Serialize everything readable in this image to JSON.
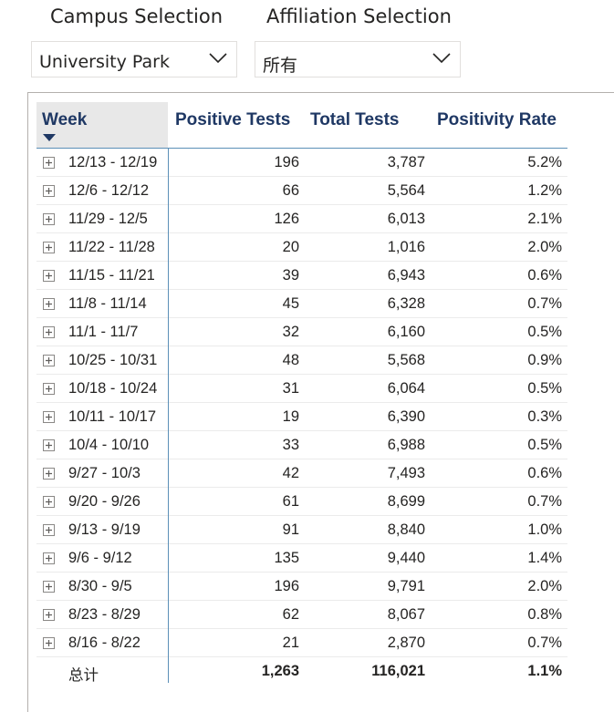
{
  "slicers": {
    "campus": {
      "title": "Campus Selection",
      "value": "University Park"
    },
    "affiliation": {
      "title": "Affiliation Selection",
      "value": "所有"
    }
  },
  "matrix": {
    "columns": [
      "Week",
      "Positive Tests",
      "Total Tests",
      "Positivity Rate"
    ],
    "sort": {
      "column": "Week",
      "direction": "descending"
    },
    "rows": [
      {
        "week": "12/13 - 12/19",
        "positive": "196",
        "total": "3,787",
        "rate": "5.2%"
      },
      {
        "week": "12/6 - 12/12",
        "positive": "66",
        "total": "5,564",
        "rate": "1.2%"
      },
      {
        "week": "11/29 - 12/5",
        "positive": "126",
        "total": "6,013",
        "rate": "2.1%"
      },
      {
        "week": "11/22 - 11/28",
        "positive": "20",
        "total": "1,016",
        "rate": "2.0%"
      },
      {
        "week": "11/15 - 11/21",
        "positive": "39",
        "total": "6,943",
        "rate": "0.6%"
      },
      {
        "week": "11/8 - 11/14",
        "positive": "45",
        "total": "6,328",
        "rate": "0.7%"
      },
      {
        "week": "11/1 - 11/7",
        "positive": "32",
        "total": "6,160",
        "rate": "0.5%"
      },
      {
        "week": "10/25 - 10/31",
        "positive": "48",
        "total": "5,568",
        "rate": "0.9%"
      },
      {
        "week": "10/18 - 10/24",
        "positive": "31",
        "total": "6,064",
        "rate": "0.5%"
      },
      {
        "week": "10/11 - 10/17",
        "positive": "19",
        "total": "6,390",
        "rate": "0.3%"
      },
      {
        "week": "10/4 - 10/10",
        "positive": "33",
        "total": "6,988",
        "rate": "0.5%"
      },
      {
        "week": "9/27 - 10/3",
        "positive": "42",
        "total": "7,493",
        "rate": "0.6%"
      },
      {
        "week": "9/20 - 9/26",
        "positive": "61",
        "total": "8,699",
        "rate": "0.7%"
      },
      {
        "week": "9/13 - 9/19",
        "positive": "91",
        "total": "8,840",
        "rate": "1.0%"
      },
      {
        "week": "9/6 - 9/12",
        "positive": "135",
        "total": "9,440",
        "rate": "1.4%"
      },
      {
        "week": "8/30 - 9/5",
        "positive": "196",
        "total": "9,791",
        "rate": "2.0%"
      },
      {
        "week": "8/23 - 8/29",
        "positive": "62",
        "total": "8,067",
        "rate": "0.8%"
      },
      {
        "week": "8/16 - 8/22",
        "positive": "21",
        "total": "2,870",
        "rate": "0.7%"
      }
    ],
    "total": {
      "label": "总计",
      "positive": "1,263",
      "total": "116,021",
      "rate": "1.1%"
    }
  }
}
